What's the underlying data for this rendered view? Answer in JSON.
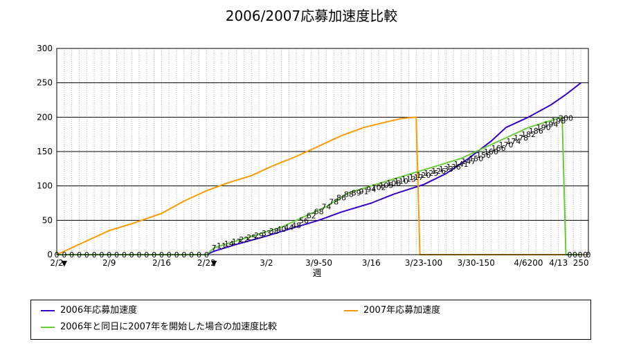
{
  "chart_data": {
    "type": "line",
    "title": "2006/2007応募加速度比較",
    "xlabel": "週",
    "ylabel": "",
    "ylim": [
      0,
      300
    ],
    "yticks": [
      0,
      50,
      100,
      150,
      200,
      250,
      300
    ],
    "xlim": [
      0,
      71
    ],
    "xticks": [
      {
        "x": 0,
        "label": "2/2"
      },
      {
        "x": 7,
        "label": "2/9"
      },
      {
        "x": 14,
        "label": "2/16"
      },
      {
        "x": 20,
        "label": "2/22"
      },
      {
        "x": 28,
        "label": "3/2"
      },
      {
        "x": 35,
        "label": "3/9-50"
      },
      {
        "x": 42,
        "label": "3/16"
      },
      {
        "x": 49,
        "label": "3/23-100"
      },
      {
        "x": 56,
        "label": "3/30-150"
      },
      {
        "x": 63,
        "label": "4/6200"
      },
      {
        "x": 67,
        "label": "4/13"
      },
      {
        "x": 70,
        "label": "250"
      }
    ],
    "markers": [
      {
        "x": 1,
        "label": "▼"
      },
      {
        "x": 21,
        "label": "▼"
      }
    ],
    "grid": true,
    "legend_position": "bottom",
    "series": [
      {
        "name": "2006年応募加速度",
        "color": "#3300cc",
        "x": [
          0,
          20,
          21,
          24,
          28,
          31,
          35,
          38,
          42,
          45,
          49,
          52,
          55,
          58,
          60,
          63,
          66,
          68,
          70
        ],
        "y": [
          0,
          0,
          5,
          15,
          27,
          37,
          50,
          62,
          75,
          88,
          102,
          118,
          140,
          165,
          185,
          200,
          218,
          233,
          250
        ]
      },
      {
        "name": "2007年応募加速度",
        "color": "#ff9900",
        "x": [
          0,
          2,
          4,
          7,
          10,
          14,
          17,
          20,
          23,
          26,
          29,
          32,
          35,
          38,
          41,
          44,
          46,
          48,
          48.5,
          70
        ],
        "y": [
          0,
          10,
          20,
          35,
          45,
          60,
          78,
          93,
          105,
          115,
          130,
          143,
          158,
          173,
          185,
          193,
          198,
          200,
          0,
          0
        ]
      },
      {
        "name": "2006年と同日に2007年を開始した場合の加速度比較",
        "color": "#66cc33",
        "x": [
          0,
          20,
          21,
          24,
          27,
          30,
          33,
          36,
          39,
          42,
          45,
          48,
          51,
          54,
          57,
          60,
          63,
          66,
          67.5,
          68,
          70
        ],
        "y": [
          0,
          0,
          10,
          20,
          30,
          40,
          55,
          70,
          90,
          100,
          110,
          120,
          130,
          140,
          155,
          170,
          185,
          195,
          200,
          0,
          0
        ]
      }
    ],
    "point_labels": [
      {
        "x": 0,
        "y": 0,
        "text": "0"
      },
      {
        "x": 1,
        "y": 0,
        "text": "0"
      },
      {
        "x": 2,
        "y": 0,
        "text": "0"
      },
      {
        "x": 3,
        "y": 0,
        "text": "0"
      },
      {
        "x": 4,
        "y": 0,
        "text": "0"
      },
      {
        "x": 5,
        "y": 0,
        "text": "0"
      },
      {
        "x": 6,
        "y": 0,
        "text": "0"
      },
      {
        "x": 7,
        "y": 0,
        "text": "0"
      },
      {
        "x": 8,
        "y": 0,
        "text": "0"
      },
      {
        "x": 9,
        "y": 0,
        "text": "0"
      },
      {
        "x": 10,
        "y": 0,
        "text": "0"
      },
      {
        "x": 11,
        "y": 0,
        "text": "0"
      },
      {
        "x": 12,
        "y": 0,
        "text": "0"
      },
      {
        "x": 13,
        "y": 0,
        "text": "0"
      },
      {
        "x": 14,
        "y": 0,
        "text": "0"
      },
      {
        "x": 15,
        "y": 0,
        "text": "0"
      },
      {
        "x": 16,
        "y": 0,
        "text": "0"
      },
      {
        "x": 17,
        "y": 0,
        "text": "0"
      },
      {
        "x": 18,
        "y": 0,
        "text": "0"
      },
      {
        "x": 19,
        "y": 0,
        "text": "0"
      },
      {
        "x": 20,
        "y": 0,
        "text": "0"
      },
      {
        "x": 21,
        "y": 10,
        "text": "7"
      },
      {
        "x": 22,
        "y": 13,
        "text": "11"
      },
      {
        "x": 23,
        "y": 16,
        "text": "14"
      },
      {
        "x": 24,
        "y": 19,
        "text": "17"
      },
      {
        "x": 25,
        "y": 22,
        "text": "22"
      },
      {
        "x": 26,
        "y": 25,
        "text": "25"
      },
      {
        "x": 27,
        "y": 28,
        "text": "29"
      },
      {
        "x": 28,
        "y": 31,
        "text": "33"
      },
      {
        "x": 29,
        "y": 34,
        "text": "38"
      },
      {
        "x": 30,
        "y": 37,
        "text": "40"
      },
      {
        "x": 31,
        "y": 40,
        "text": "44"
      },
      {
        "x": 32,
        "y": 43,
        "text": "48"
      },
      {
        "x": 33,
        "y": 50,
        "text": "56"
      },
      {
        "x": 34,
        "y": 57,
        "text": "62"
      },
      {
        "x": 35,
        "y": 63,
        "text": "68"
      },
      {
        "x": 36,
        "y": 70,
        "text": "74"
      },
      {
        "x": 37,
        "y": 77,
        "text": "78"
      },
      {
        "x": 38,
        "y": 83,
        "text": "86"
      },
      {
        "x": 39,
        "y": 88,
        "text": "88"
      },
      {
        "x": 40,
        "y": 90,
        "text": "89"
      },
      {
        "x": 41,
        "y": 92,
        "text": "91"
      },
      {
        "x": 42,
        "y": 95,
        "text": "94"
      },
      {
        "x": 43,
        "y": 98,
        "text": "102"
      },
      {
        "x": 44,
        "y": 101,
        "text": "105"
      },
      {
        "x": 45,
        "y": 104,
        "text": "108"
      },
      {
        "x": 46,
        "y": 107,
        "text": "110"
      },
      {
        "x": 47,
        "y": 110,
        "text": "113"
      },
      {
        "x": 48,
        "y": 113,
        "text": "117"
      },
      {
        "x": 49,
        "y": 116,
        "text": "120"
      },
      {
        "x": 50,
        "y": 119,
        "text": "125"
      },
      {
        "x": 51,
        "y": 122,
        "text": "126"
      },
      {
        "x": 52,
        "y": 125,
        "text": "133"
      },
      {
        "x": 53,
        "y": 128,
        "text": "136"
      },
      {
        "x": 54,
        "y": 132,
        "text": "141"
      },
      {
        "x": 55,
        "y": 136,
        "text": "147"
      },
      {
        "x": 56,
        "y": 140,
        "text": "150"
      },
      {
        "x": 57,
        "y": 145,
        "text": "156"
      },
      {
        "x": 58,
        "y": 150,
        "text": "160"
      },
      {
        "x": 59,
        "y": 155,
        "text": "166"
      },
      {
        "x": 60,
        "y": 160,
        "text": "170"
      },
      {
        "x": 61,
        "y": 165,
        "text": "174"
      },
      {
        "x": 62,
        "y": 170,
        "text": "178"
      },
      {
        "x": 63,
        "y": 175,
        "text": "182"
      },
      {
        "x": 64,
        "y": 180,
        "text": "186"
      },
      {
        "x": 65,
        "y": 185,
        "text": "190"
      },
      {
        "x": 66,
        "y": 190,
        "text": "194"
      },
      {
        "x": 67,
        "y": 195,
        "text": "198"
      },
      {
        "x": 68,
        "y": 199,
        "text": "200"
      },
      {
        "x": 68.5,
        "y": 0,
        "text": "0"
      },
      {
        "x": 69.2,
        "y": 0,
        "text": "0"
      },
      {
        "x": 69.9,
        "y": 0,
        "text": "0"
      },
      {
        "x": 70.6,
        "y": 0,
        "text": "0"
      },
      {
        "x": 71,
        "y": 0,
        "text": "0"
      }
    ]
  }
}
